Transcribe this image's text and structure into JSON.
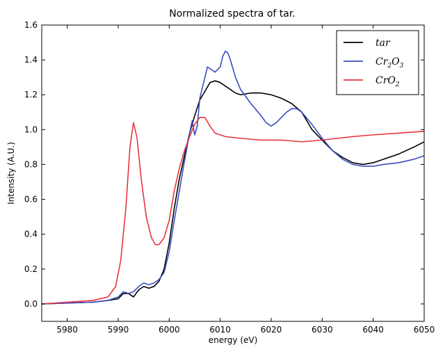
{
  "chart_data": {
    "type": "line",
    "title": "Normalized spectra of tar.",
    "xlabel": "energy (eV)",
    "ylabel": "Intensity (A.U.)",
    "xlim": [
      5975,
      6050
    ],
    "ylim": [
      -0.1,
      1.6
    ],
    "xticks": [
      5980,
      5990,
      6000,
      6010,
      6020,
      6030,
      6040,
      6050
    ],
    "yticks": [
      0.0,
      0.2,
      0.4,
      0.6,
      0.8,
      1.0,
      1.2,
      1.4,
      1.6
    ],
    "xtick_labels": [
      "5980",
      "5990",
      "6000",
      "6010",
      "6020",
      "6030",
      "6040",
      "6050"
    ],
    "ytick_labels": [
      "0.0",
      "0.2",
      "0.4",
      "0.6",
      "0.8",
      "1.0",
      "1.2",
      "1.4",
      "1.6"
    ],
    "grid": false,
    "legend_position": "top-right",
    "series": [
      {
        "name": "tar",
        "legend_main": "tar",
        "legend_sub": "",
        "legend_tail": "",
        "color": "#000000",
        "points": [
          [
            5975,
            0.0
          ],
          [
            5980,
            0.005
          ],
          [
            5985,
            0.01
          ],
          [
            5988,
            0.02
          ],
          [
            5990,
            0.03
          ],
          [
            5991,
            0.06
          ],
          [
            5992,
            0.06
          ],
          [
            5993,
            0.04
          ],
          [
            5994,
            0.08
          ],
          [
            5995,
            0.1
          ],
          [
            5996,
            0.09
          ],
          [
            5997,
            0.1
          ],
          [
            5998,
            0.13
          ],
          [
            5999,
            0.2
          ],
          [
            6000,
            0.35
          ],
          [
            6001,
            0.55
          ],
          [
            6002,
            0.72
          ],
          [
            6003,
            0.85
          ],
          [
            6004,
            0.98
          ],
          [
            6005,
            1.08
          ],
          [
            6006,
            1.17
          ],
          [
            6007,
            1.22
          ],
          [
            6008,
            1.27
          ],
          [
            6009,
            1.28
          ],
          [
            6010,
            1.27
          ],
          [
            6011,
            1.25
          ],
          [
            6012,
            1.23
          ],
          [
            6013,
            1.21
          ],
          [
            6014,
            1.2
          ],
          [
            6016,
            1.21
          ],
          [
            6018,
            1.21
          ],
          [
            6020,
            1.2
          ],
          [
            6022,
            1.18
          ],
          [
            6024,
            1.15
          ],
          [
            6026,
            1.1
          ],
          [
            6028,
            1.0
          ],
          [
            6030,
            0.94
          ],
          [
            6032,
            0.88
          ],
          [
            6034,
            0.84
          ],
          [
            6036,
            0.81
          ],
          [
            6038,
            0.8
          ],
          [
            6040,
            0.81
          ],
          [
            6042,
            0.83
          ],
          [
            6045,
            0.86
          ],
          [
            6048,
            0.9
          ],
          [
            6050,
            0.93
          ]
        ]
      },
      {
        "name": "Cr2O3",
        "legend_main": "Cr",
        "legend_sub": "2",
        "legend_tail": "O",
        "legend_sub2": "3",
        "color": "#3b4cc0",
        "points": [
          [
            5975,
            0.0
          ],
          [
            5980,
            0.005
          ],
          [
            5985,
            0.01
          ],
          [
            5988,
            0.02
          ],
          [
            5990,
            0.04
          ],
          [
            5991,
            0.07
          ],
          [
            5992,
            0.06
          ],
          [
            5993,
            0.07
          ],
          [
            5994,
            0.1
          ],
          [
            5995,
            0.12
          ],
          [
            5996,
            0.11
          ],
          [
            5997,
            0.12
          ],
          [
            5998,
            0.14
          ],
          [
            5999,
            0.18
          ],
          [
            6000,
            0.3
          ],
          [
            6001,
            0.48
          ],
          [
            6002,
            0.65
          ],
          [
            6003,
            0.82
          ],
          [
            6004,
            0.98
          ],
          [
            6004.5,
            1.05
          ],
          [
            6005,
            0.97
          ],
          [
            6005.5,
            1.02
          ],
          [
            6006,
            1.18
          ],
          [
            6007,
            1.3
          ],
          [
            6007.5,
            1.36
          ],
          [
            6008,
            1.35
          ],
          [
            6009,
            1.33
          ],
          [
            6010,
            1.36
          ],
          [
            6010.5,
            1.42
          ],
          [
            6011,
            1.45
          ],
          [
            6011.5,
            1.44
          ],
          [
            6012,
            1.4
          ],
          [
            6013,
            1.3
          ],
          [
            6014,
            1.23
          ],
          [
            6016,
            1.15
          ],
          [
            6018,
            1.08
          ],
          [
            6019,
            1.04
          ],
          [
            6020,
            1.02
          ],
          [
            6021,
            1.04
          ],
          [
            6022,
            1.07
          ],
          [
            6023,
            1.1
          ],
          [
            6024,
            1.12
          ],
          [
            6025,
            1.12
          ],
          [
            6026,
            1.1
          ],
          [
            6028,
            1.03
          ],
          [
            6030,
            0.95
          ],
          [
            6032,
            0.88
          ],
          [
            6034,
            0.83
          ],
          [
            6036,
            0.8
          ],
          [
            6038,
            0.79
          ],
          [
            6040,
            0.79
          ],
          [
            6042,
            0.8
          ],
          [
            6045,
            0.81
          ],
          [
            6048,
            0.83
          ],
          [
            6050,
            0.85
          ]
        ]
      },
      {
        "name": "CrO2",
        "legend_main": "CrO",
        "legend_sub": "2",
        "legend_tail": "",
        "color": "#e8333f",
        "points": [
          [
            5975,
            0.0
          ],
          [
            5980,
            0.01
          ],
          [
            5985,
            0.02
          ],
          [
            5988,
            0.04
          ],
          [
            5989.5,
            0.1
          ],
          [
            5990.5,
            0.25
          ],
          [
            5991.5,
            0.55
          ],
          [
            5992.3,
            0.9
          ],
          [
            5993,
            1.04
          ],
          [
            5993.7,
            0.95
          ],
          [
            5994.5,
            0.72
          ],
          [
            5995.5,
            0.5
          ],
          [
            5996.5,
            0.38
          ],
          [
            5997.3,
            0.34
          ],
          [
            5998,
            0.34
          ],
          [
            5999,
            0.38
          ],
          [
            6000,
            0.48
          ],
          [
            6001,
            0.65
          ],
          [
            6002,
            0.78
          ],
          [
            6003,
            0.88
          ],
          [
            6004,
            0.96
          ],
          [
            6005,
            1.03
          ],
          [
            6006,
            1.07
          ],
          [
            6007,
            1.07
          ],
          [
            6008,
            1.02
          ],
          [
            6009,
            0.98
          ],
          [
            6011,
            0.96
          ],
          [
            6014,
            0.95
          ],
          [
            6018,
            0.94
          ],
          [
            6022,
            0.94
          ],
          [
            6026,
            0.93
          ],
          [
            6030,
            0.94
          ],
          [
            6033,
            0.95
          ],
          [
            6036,
            0.96
          ],
          [
            6040,
            0.97
          ],
          [
            6045,
            0.98
          ],
          [
            6050,
            0.99
          ]
        ]
      }
    ]
  }
}
